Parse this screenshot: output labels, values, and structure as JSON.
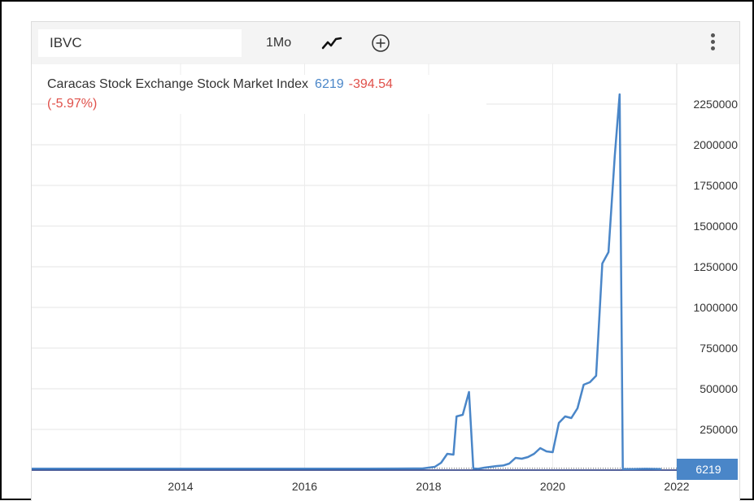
{
  "toolbar": {
    "symbol": "IBVC",
    "period": "1Mo",
    "chart_type_icon": "line-chart-icon",
    "add_icon": "plus-circle-icon",
    "menu_icon": "vertical-dots-icon"
  },
  "legend": {
    "name": "Caracas Stock Exchange Stock Market Index",
    "price": "6219",
    "change": "-394.54",
    "change_pct": "(-5.97%)"
  },
  "colors": {
    "line": "#4a86c8",
    "positive": "#4a86c8",
    "negative": "#e0504a",
    "last_price_bg": "#4a86c8"
  },
  "chart_data": {
    "type": "line",
    "title": "",
    "xlabel": "",
    "ylabel": "",
    "ylim": [
      0,
      2500000
    ],
    "xlim": [
      2011.6,
      2022
    ],
    "y_ticks": [
      "250000",
      "500000",
      "750000",
      "1000000",
      "1250000",
      "1500000",
      "1750000",
      "2000000",
      "2250000"
    ],
    "x_ticks": [
      "2014",
      "2016",
      "2018",
      "2020",
      "2022"
    ],
    "last_value_label": "6219",
    "grid": true,
    "series": [
      {
        "x": [
          2011.6,
          2012.5,
          2013.5,
          2014.5,
          2015.5,
          2016.5,
          2017.0,
          2017.5,
          2017.9,
          2018.1,
          2018.2,
          2018.3,
          2018.4,
          2018.45,
          2018.55,
          2018.65,
          2018.72,
          2018.8,
          2018.9,
          2019.0,
          2019.1,
          2019.2,
          2019.3,
          2019.4,
          2019.5,
          2019.6,
          2019.7,
          2019.8,
          2019.9,
          2020.0,
          2020.1,
          2020.2,
          2020.3,
          2020.4,
          2020.5,
          2020.6,
          2020.7,
          2020.8,
          2020.9,
          2021.0,
          2021.08,
          2021.13,
          2021.18,
          2021.3,
          2021.5,
          2021.75
        ],
        "y": [
          9000,
          9000,
          9000,
          9000,
          9000,
          9000,
          9000,
          9500,
          10000,
          20000,
          45000,
          100000,
          95000,
          330000,
          340000,
          480000,
          10000,
          8000,
          15000,
          20000,
          25000,
          28000,
          40000,
          75000,
          70000,
          80000,
          100000,
          135000,
          115000,
          110000,
          290000,
          330000,
          320000,
          380000,
          525000,
          540000,
          580000,
          1270000,
          1340000,
          1930000,
          2310000,
          6219,
          6219,
          6219,
          8000,
          6219
        ]
      }
    ]
  }
}
